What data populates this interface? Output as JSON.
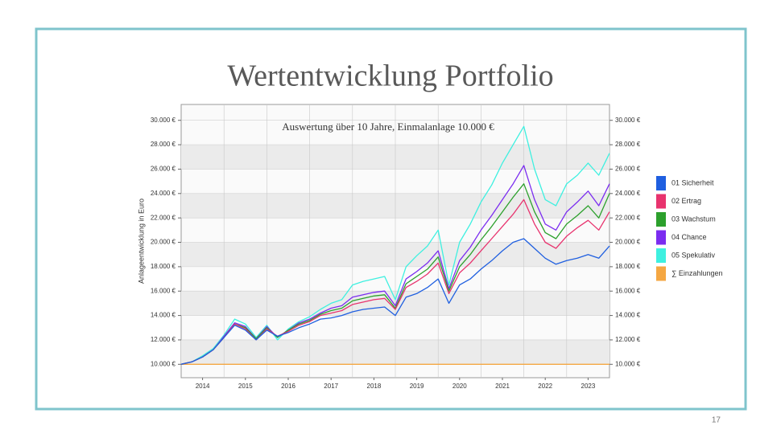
{
  "page_number": "17",
  "chart_data": {
    "type": "line",
    "title": "Wertentwicklung Portfolio",
    "annotation": "Auswertung über 10 Jahre, Einmalanlage 10.000 €",
    "y_label": "Anlageentwicklung  in Euro",
    "x": [
      2014.0,
      2014.25,
      2014.5,
      2014.75,
      2015.0,
      2015.25,
      2015.5,
      2015.75,
      2016.0,
      2016.25,
      2016.5,
      2016.75,
      2017.0,
      2017.25,
      2017.5,
      2017.75,
      2018.0,
      2018.25,
      2018.5,
      2018.75,
      2019.0,
      2019.25,
      2019.5,
      2019.75,
      2020.0,
      2020.25,
      2020.5,
      2020.75,
      2021.0,
      2021.25,
      2021.5,
      2021.75,
      2022.0,
      2022.25,
      2022.5,
      2022.75,
      2023.0,
      2023.25,
      2023.5,
      2023.75,
      2024.0
    ],
    "xlim": [
      2014,
      2024
    ],
    "xticks": [
      {
        "value": 2014.5,
        "label": "2014"
      },
      {
        "value": 2015.5,
        "label": "2015"
      },
      {
        "value": 2016.5,
        "label": "2016"
      },
      {
        "value": 2017.5,
        "label": "2017"
      },
      {
        "value": 2018.5,
        "label": "2018"
      },
      {
        "value": 2019.5,
        "label": "2019"
      },
      {
        "value": 2020.5,
        "label": "2020"
      },
      {
        "value": 2021.5,
        "label": "2021"
      },
      {
        "value": 2022.5,
        "label": "2022"
      },
      {
        "value": 2023.5,
        "label": "2023"
      }
    ],
    "ylim": [
      8900,
      31300
    ],
    "yticks": [
      {
        "value": 10000,
        "label": "10.000 €"
      },
      {
        "value": 12000,
        "label": "12.000 €"
      },
      {
        "value": 14000,
        "label": "14.000 €"
      },
      {
        "value": 16000,
        "label": "16.000 €"
      },
      {
        "value": 18000,
        "label": "18.000 €"
      },
      {
        "value": 20000,
        "label": "20.000 €"
      },
      {
        "value": 22000,
        "label": "22.000 €"
      },
      {
        "value": 24000,
        "label": "24.000 €"
      },
      {
        "value": 26000,
        "label": "26.000 €"
      },
      {
        "value": 28000,
        "label": "28.000 €"
      },
      {
        "value": 30000,
        "label": "30.000 €"
      }
    ],
    "y2lim": [
      8900,
      31300
    ],
    "y2ticks": [
      {
        "value": 10000,
        "label": "10.000 €"
      },
      {
        "value": 12000,
        "label": "12.000 €"
      },
      {
        "value": 14000,
        "label": "14.000 €"
      },
      {
        "value": 16000,
        "label": "16.000 €"
      },
      {
        "value": 18000,
        "label": "18.000 €"
      },
      {
        "value": 20000,
        "label": "20.000 €"
      },
      {
        "value": 22000,
        "label": "22.000 €"
      },
      {
        "value": 24000,
        "label": "24.000 €"
      },
      {
        "value": 26000,
        "label": "26.000 €"
      },
      {
        "value": 28000,
        "label": "28.000 €"
      },
      {
        "value": 30000,
        "label": "30.000 €"
      }
    ],
    "grid": true,
    "legend": "right",
    "series": [
      {
        "name": "01 Sicherheit",
        "color": "#1f5fe0",
        "values": [
          10000,
          10200,
          10600,
          11200,
          12200,
          13200,
          12800,
          12000,
          12800,
          12300,
          12600,
          13000,
          13300,
          13700,
          13800,
          14000,
          14300,
          14500,
          14600,
          14700,
          14000,
          15500,
          15800,
          16300,
          17000,
          15000,
          16500,
          17000,
          17800,
          18500,
          19300,
          20000,
          20300,
          19500,
          18700,
          18200,
          18500,
          18700,
          19000,
          18700,
          19700
        ]
      },
      {
        "name": "02 Ertrag",
        "color": "#e8336e",
        "values": [
          10000,
          10200,
          10600,
          11200,
          12200,
          13300,
          12900,
          12000,
          12900,
          12300,
          12700,
          13200,
          13500,
          14000,
          14200,
          14400,
          14900,
          15100,
          15300,
          15400,
          14500,
          16300,
          16800,
          17400,
          18300,
          15800,
          17500,
          18300,
          19300,
          20300,
          21300,
          22300,
          23500,
          21500,
          20000,
          19500,
          20500,
          21200,
          21800,
          21000,
          22500
        ]
      },
      {
        "name": "03 Wachstum",
        "color": "#2ca02c",
        "values": [
          10000,
          10200,
          10600,
          11200,
          12200,
          13300,
          13000,
          12100,
          13000,
          12200,
          12800,
          13300,
          13600,
          14100,
          14400,
          14600,
          15200,
          15400,
          15600,
          15700,
          14600,
          16600,
          17200,
          17800,
          18800,
          16000,
          18000,
          19000,
          20200,
          21300,
          22500,
          23700,
          24800,
          22500,
          20800,
          20300,
          21500,
          22200,
          23000,
          22000,
          24000
        ]
      },
      {
        "name": "04 Chance",
        "color": "#7b2cf0",
        "values": [
          10000,
          10200,
          10600,
          11200,
          12300,
          13400,
          13100,
          12100,
          13100,
          12200,
          12800,
          13400,
          13700,
          14200,
          14600,
          14800,
          15500,
          15700,
          15900,
          16000,
          14800,
          17000,
          17600,
          18300,
          19300,
          16200,
          18500,
          19600,
          21000,
          22200,
          23500,
          24800,
          26300,
          23500,
          21500,
          21000,
          22500,
          23300,
          24200,
          23000,
          24800
        ]
      },
      {
        "name": "05 Spekulativ",
        "color": "#3ef0e0",
        "values": [
          10000,
          10200,
          10700,
          11300,
          12400,
          13700,
          13300,
          12200,
          13200,
          12000,
          12900,
          13500,
          13900,
          14500,
          15000,
          15300,
          16500,
          16800,
          17000,
          17200,
          15300,
          18000,
          18900,
          19700,
          21000,
          16500,
          20000,
          21500,
          23300,
          24700,
          26500,
          28000,
          29500,
          26000,
          23500,
          23000,
          24800,
          25500,
          26500,
          25500,
          27300
        ]
      },
      {
        "name": "∑ Einzahlungen",
        "color": "#f5a742",
        "values": [
          10000,
          10000,
          10000,
          10000,
          10000,
          10000,
          10000,
          10000,
          10000,
          10000,
          10000,
          10000,
          10000,
          10000,
          10000,
          10000,
          10000,
          10000,
          10000,
          10000,
          10000,
          10000,
          10000,
          10000,
          10000,
          10000,
          10000,
          10000,
          10000,
          10000,
          10000,
          10000,
          10000,
          10000,
          10000,
          10000,
          10000,
          10000,
          10000,
          10000,
          10000
        ]
      }
    ]
  }
}
